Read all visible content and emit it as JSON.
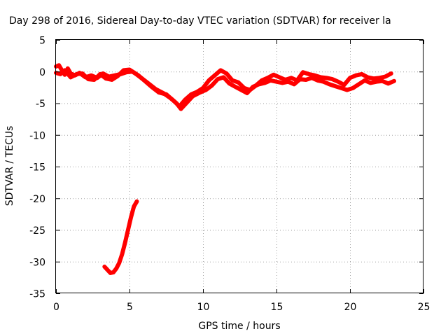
{
  "chart_data": {
    "type": "line",
    "title": "Day 298 of 2016, Sidereal Day-to-day VTEC variation (SDTVAR) for receiver la",
    "xlabel": "GPS time / hours",
    "ylabel": "SDTVAR / TECUs",
    "xlim": [
      0,
      25
    ],
    "ylim": [
      -35,
      5
    ],
    "xticks": [
      "0",
      "5",
      "10",
      "15",
      "20",
      "25"
    ],
    "yticks": [
      "5",
      "0",
      "-5",
      "-10",
      "-15",
      "-20",
      "-25",
      "-30",
      "-35"
    ],
    "grid": true,
    "series_color": "#ff0000",
    "series": [
      {
        "values": [
          [
            0.0,
            0.8
          ],
          [
            0.2,
            1.0
          ],
          [
            0.4,
            0.2
          ],
          [
            0.6,
            -0.5
          ],
          [
            0.8,
            0.5
          ],
          [
            1.0,
            -0.3
          ],
          [
            1.3,
            -0.6
          ],
          [
            1.6,
            -0.2
          ],
          [
            2.0,
            -0.9
          ],
          [
            2.4,
            -0.6
          ],
          [
            2.8,
            -1.0
          ],
          [
            3.2,
            -0.3
          ],
          [
            3.6,
            -0.8
          ],
          [
            4.0,
            -0.6
          ],
          [
            4.4,
            -0.4
          ],
          [
            4.8,
            -0.1
          ],
          [
            5.2,
            0.0
          ],
          [
            5.6,
            -0.6
          ],
          [
            6.0,
            -1.4
          ],
          [
            6.5,
            -2.4
          ],
          [
            7.0,
            -3.3
          ],
          [
            7.5,
            -3.6
          ],
          [
            8.0,
            -4.6
          ],
          [
            8.4,
            -5.5
          ],
          [
            8.8,
            -4.4
          ],
          [
            9.2,
            -3.6
          ],
          [
            9.6,
            -3.2
          ],
          [
            10.0,
            -2.6
          ],
          [
            10.4,
            -1.4
          ],
          [
            10.8,
            -0.6
          ],
          [
            11.2,
            0.2
          ],
          [
            11.6,
            -0.3
          ],
          [
            12.0,
            -1.4
          ],
          [
            12.4,
            -1.7
          ],
          [
            12.8,
            -2.6
          ],
          [
            13.2,
            -2.9
          ],
          [
            13.6,
            -2.2
          ],
          [
            14.0,
            -1.4
          ],
          [
            14.4,
            -1.0
          ],
          [
            14.8,
            -0.5
          ],
          [
            15.2,
            -0.9
          ],
          [
            15.6,
            -1.3
          ],
          [
            16.0,
            -1.0
          ],
          [
            16.4,
            -1.4
          ],
          [
            16.8,
            -0.1
          ],
          [
            17.2,
            -0.4
          ],
          [
            17.6,
            -0.6
          ],
          [
            18.0,
            -0.9
          ],
          [
            18.4,
            -1.0
          ],
          [
            18.8,
            -1.2
          ],
          [
            19.2,
            -1.6
          ],
          [
            19.6,
            -2.1
          ],
          [
            20.0,
            -1.0
          ],
          [
            20.4,
            -0.6
          ],
          [
            20.8,
            -0.4
          ],
          [
            21.2,
            -0.9
          ],
          [
            21.6,
            -1.1
          ],
          [
            22.0,
            -1.0
          ],
          [
            22.4,
            -0.8
          ],
          [
            22.8,
            -0.3
          ]
        ]
      },
      {
        "values": [
          [
            0.0,
            -0.2
          ],
          [
            0.3,
            -0.4
          ],
          [
            0.6,
            0.2
          ],
          [
            1.0,
            -0.9
          ],
          [
            1.4,
            -0.4
          ],
          [
            1.8,
            -0.3
          ],
          [
            2.2,
            -1.2
          ],
          [
            2.6,
            -1.3
          ],
          [
            3.0,
            -0.4
          ],
          [
            3.4,
            -1.1
          ],
          [
            3.8,
            -1.3
          ],
          [
            4.2,
            -0.7
          ],
          [
            4.6,
            0.2
          ],
          [
            5.0,
            0.3
          ],
          [
            5.4,
            -0.3
          ],
          [
            5.8,
            -1.0
          ],
          [
            6.3,
            -1.9
          ],
          [
            6.8,
            -2.8
          ],
          [
            7.3,
            -3.4
          ],
          [
            7.8,
            -4.2
          ],
          [
            8.2,
            -5.0
          ],
          [
            8.5,
            -5.9
          ],
          [
            8.9,
            -4.9
          ],
          [
            9.3,
            -3.9
          ],
          [
            9.8,
            -3.3
          ],
          [
            10.2,
            -2.9
          ],
          [
            10.6,
            -2.2
          ],
          [
            11.0,
            -1.2
          ],
          [
            11.4,
            -0.9
          ],
          [
            11.8,
            -1.9
          ],
          [
            12.2,
            -2.4
          ],
          [
            12.6,
            -2.9
          ],
          [
            13.0,
            -3.4
          ],
          [
            13.4,
            -2.4
          ],
          [
            13.8,
            -2.0
          ],
          [
            14.2,
            -1.8
          ],
          [
            14.6,
            -1.4
          ],
          [
            15.0,
            -1.6
          ],
          [
            15.4,
            -1.8
          ],
          [
            15.8,
            -1.6
          ],
          [
            16.2,
            -2.0
          ],
          [
            16.6,
            -1.2
          ],
          [
            17.0,
            -1.3
          ],
          [
            17.4,
            -1.0
          ],
          [
            17.8,
            -1.4
          ],
          [
            18.2,
            -1.6
          ],
          [
            18.6,
            -2.0
          ],
          [
            19.0,
            -2.3
          ],
          [
            19.4,
            -2.6
          ],
          [
            19.8,
            -2.9
          ],
          [
            20.2,
            -2.6
          ],
          [
            20.6,
            -2.0
          ],
          [
            21.0,
            -1.4
          ],
          [
            21.4,
            -1.8
          ],
          [
            21.8,
            -1.6
          ],
          [
            22.2,
            -1.5
          ],
          [
            22.6,
            -1.9
          ],
          [
            23.0,
            -1.5
          ]
        ]
      },
      {
        "values": [
          [
            3.3,
            -30.8
          ],
          [
            3.5,
            -31.3
          ],
          [
            3.7,
            -31.8
          ],
          [
            3.9,
            -31.7
          ],
          [
            4.1,
            -31.1
          ],
          [
            4.3,
            -30.2
          ],
          [
            4.5,
            -28.8
          ],
          [
            4.7,
            -27.0
          ],
          [
            4.9,
            -25.0
          ],
          [
            5.1,
            -23.0
          ],
          [
            5.3,
            -21.3
          ],
          [
            5.5,
            -20.5
          ]
        ]
      }
    ]
  }
}
